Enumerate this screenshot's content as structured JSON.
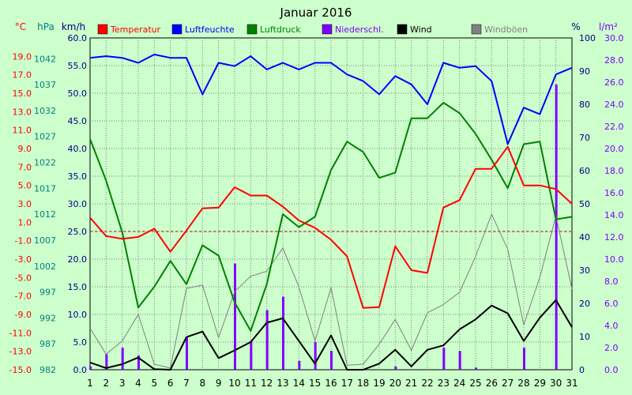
{
  "chart_data": {
    "type": "line",
    "title": "Januar 2016",
    "unit_labels": {
      "temp": "°C",
      "pressure": "hPa",
      "wind": "km/h",
      "humidity": "%",
      "precip": "l/m²"
    },
    "legend": [
      {
        "key": "temp",
        "label": "Temperatur",
        "color": "#FF0000"
      },
      {
        "key": "humidity",
        "label": "Luftfeuchte",
        "color": "#0000FF"
      },
      {
        "key": "pressure",
        "label": "Luftdruck",
        "color": "#008000"
      },
      {
        "key": "precip",
        "label": "Niederschl.",
        "color": "#8000FF"
      },
      {
        "key": "wind",
        "label": "Wind",
        "color": "#000000"
      },
      {
        "key": "gust",
        "label": "Windböen",
        "color": "#808080"
      }
    ],
    "x": [
      1,
      2,
      3,
      4,
      5,
      6,
      7,
      8,
      9,
      10,
      11,
      12,
      13,
      14,
      15,
      16,
      17,
      18,
      19,
      20,
      21,
      22,
      23,
      24,
      25,
      26,
      27,
      28,
      29,
      30,
      31
    ],
    "axes": {
      "wind": {
        "min": 0,
        "max": 60,
        "ticks": [
          "0.0",
          "5.0",
          "10.0",
          "15.0",
          "20.0",
          "25.0",
          "30.0",
          "35.0",
          "40.0",
          "45.0",
          "50.0",
          "55.0",
          "60.0"
        ]
      },
      "temp": {
        "min": -15,
        "max": 21,
        "ticks": [
          "-15.0",
          "-13.0",
          "-11.0",
          "-9.0",
          "-7.0",
          "-5.0",
          "-3.0",
          "-1.0",
          "1.0",
          "3.0",
          "5.0",
          "7.0",
          "9.0",
          "11.0",
          "13.0",
          "15.0",
          "17.0",
          "19.0"
        ]
      },
      "pressure": {
        "min": 982,
        "max": 1046,
        "ticks": [
          "982",
          "987",
          "992",
          "997",
          "1002",
          "1007",
          "1012",
          "1017",
          "1022",
          "1027",
          "1032",
          "1037",
          "1042"
        ]
      },
      "humidity": {
        "min": 0,
        "max": 100,
        "ticks": [
          "0",
          "10",
          "20",
          "30",
          "40",
          "50",
          "60",
          "70",
          "80",
          "90",
          "100"
        ]
      },
      "precip": {
        "min": 0,
        "max": 30,
        "ticks": [
          "0.0",
          "2.0",
          "4.0",
          "6.0",
          "8.0",
          "10.0",
          "12.0",
          "14.0",
          "16.0",
          "18.0",
          "20.0",
          "22.0",
          "24.0",
          "26.0",
          "28.0",
          "30.0"
        ]
      }
    },
    "zero_line": {
      "axis": "temp",
      "value": 0
    },
    "series": [
      {
        "key": "humidity",
        "axis": "humidity",
        "values": [
          94,
          94.5,
          94,
          92.5,
          95,
          94,
          94,
          83,
          92.5,
          91.5,
          94.5,
          90.5,
          92.5,
          90.5,
          92.5,
          92.5,
          89,
          87,
          83,
          88.5,
          86,
          80,
          92.5,
          91,
          91.5,
          87,
          68,
          79,
          77,
          89,
          91
        ]
      },
      {
        "key": "pressure",
        "axis": "pressure",
        "values": [
          1026.5,
          1018.5,
          1008.5,
          994,
          998,
          1003,
          998.5,
          1006,
          1004,
          995,
          989.5,
          998.5,
          1012,
          1009.5,
          1011.5,
          1020.5,
          1026,
          1024,
          1019,
          1020,
          1030.5,
          1030.5,
          1033.5,
          1031.5,
          1027.5,
          1022.5,
          1017,
          1025.5,
          1026,
          1011,
          1011.5
        ]
      },
      {
        "key": "temp",
        "axis": "temp",
        "values": [
          1.5,
          -0.5,
          -0.8,
          -0.6,
          0.3,
          -2.2,
          0.1,
          2.5,
          2.6,
          4.8,
          3.9,
          3.9,
          2.7,
          1.2,
          0.4,
          -0.9,
          -2.7,
          -8.3,
          -8.2,
          -1.6,
          -4.2,
          -4.5,
          2.6,
          3.4,
          6.8,
          6.8,
          9.2,
          5.0,
          5.0,
          4.6,
          3.0
        ]
      },
      {
        "key": "wind",
        "axis": "wind",
        "values": [
          1.3,
          0.3,
          1.0,
          2.2,
          0.1,
          0,
          5.9,
          6.9,
          2.1,
          3.5,
          5.0,
          8.5,
          9.3,
          5.2,
          1.1,
          6.2,
          0,
          0,
          1.1,
          3.6,
          0.6,
          3.6,
          4.4,
          7.3,
          9.1,
          11.6,
          10.2,
          5.2,
          9.4,
          12.6,
          7.7
        ]
      },
      {
        "key": "gust",
        "axis": "wind",
        "values": [
          7.5,
          2.8,
          5.2,
          10.0,
          1.0,
          0.3,
          14.7,
          15.3,
          5.8,
          14.1,
          16.9,
          17.8,
          22.0,
          15.0,
          5.2,
          14.8,
          0.8,
          1.0,
          4.6,
          9.1,
          3.5,
          10.3,
          11.8,
          14.0,
          20.5,
          28.1,
          21.8,
          8.1,
          16.7,
          27.8,
          14.6
        ]
      }
    ],
    "bars": {
      "key": "precip",
      "axis": "precip",
      "values": [
        0.3,
        1.4,
        2.0,
        1.3,
        0.1,
        0,
        2.9,
        0,
        0,
        9.6,
        2.6,
        5.4,
        6.6,
        0.8,
        2.5,
        1.7,
        0,
        0,
        0,
        0.3,
        0,
        0,
        2.0,
        1.7,
        0.2,
        0,
        0,
        2.0,
        0,
        25.8,
        0
      ]
    }
  }
}
